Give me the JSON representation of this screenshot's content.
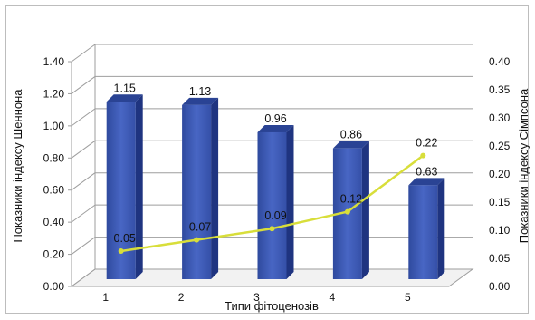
{
  "chart_data": {
    "type": "bar",
    "categories": [
      "1",
      "2",
      "3",
      "4",
      "5"
    ],
    "xlabel": "Типи фітоценозів",
    "ylabel": "Показники індексу Шеннона",
    "y2label": "Показники індексу Сімпсона",
    "ylim": [
      0,
      1.4
    ],
    "y2lim": [
      0,
      0.4
    ],
    "yticks": [
      "0.00",
      "0.20",
      "0.40",
      "0.60",
      "0.80",
      "1.00",
      "1.20",
      "1.40"
    ],
    "y2ticks": [
      "0.00",
      "0.05",
      "0.10",
      "0.15",
      "0.20",
      "0.25",
      "0.30",
      "0.35",
      "0.40"
    ],
    "grid": true,
    "series": [
      {
        "type": "bar",
        "axis": "left",
        "values": [
          1.15,
          1.13,
          0.96,
          0.86,
          0.63
        ],
        "labels": [
          "1.15",
          "1.13",
          "0.96",
          "0.86",
          "0.63"
        ],
        "color": "#3b55b0"
      },
      {
        "type": "line",
        "axis": "right",
        "values": [
          0.05,
          0.07,
          0.09,
          0.12,
          0.22
        ],
        "labels": [
          "0.05",
          "0.07",
          "0.09",
          "0.12",
          "0.22"
        ],
        "color": "#d8de3a"
      }
    ]
  }
}
